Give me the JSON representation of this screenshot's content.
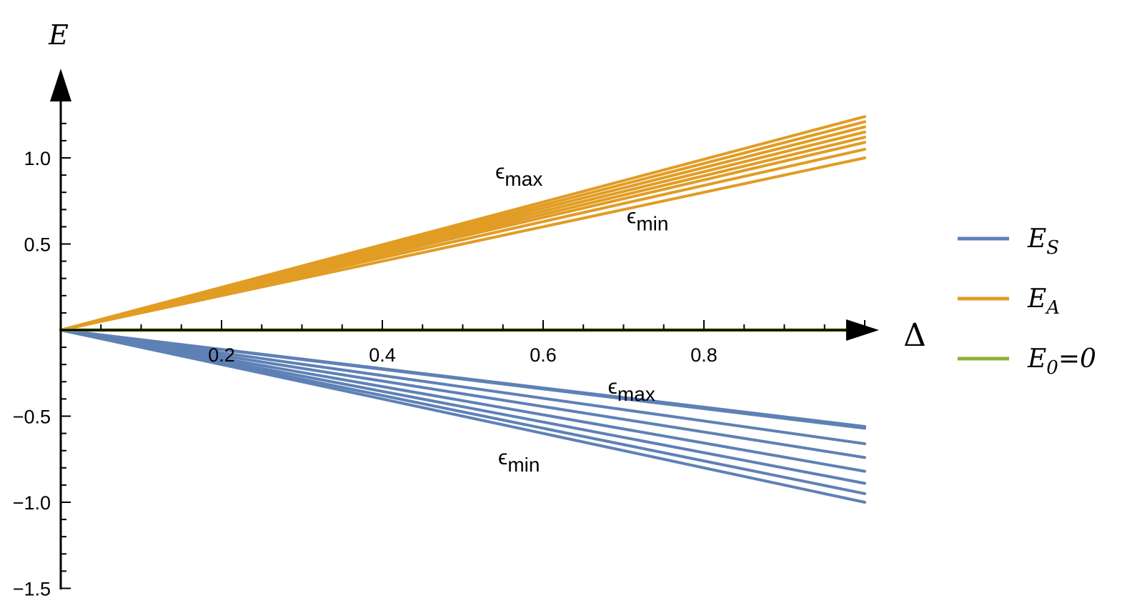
{
  "chart_data": {
    "type": "line",
    "xlabel": "Δ",
    "ylabel": "E",
    "xlim": [
      0,
      1.0
    ],
    "ylim": [
      -1.5,
      1.3
    ],
    "x_ticks": [
      "0.2",
      "0.4",
      "0.6",
      "0.8"
    ],
    "x_tick_values": [
      0.2,
      0.4,
      0.6,
      0.8
    ],
    "y_ticks": [
      "1.0",
      "0.5",
      "−0.5",
      "−1.0",
      "−1.5"
    ],
    "y_tick_values": [
      1.0,
      0.5,
      -0.5,
      -1.0,
      -1.5
    ],
    "series": [
      {
        "name": "E_S",
        "label_main": "E",
        "label_sub": "S",
        "color": "#5e81b5",
        "x": [
          0,
          1.0
        ],
        "end_values": [
          -0.56,
          -0.57,
          -0.66,
          -0.74,
          -0.82,
          -0.89,
          -0.95,
          -1.0
        ]
      },
      {
        "name": "E_A",
        "label_main": "E",
        "label_sub": "A",
        "color": "#e19c24",
        "x": [
          0,
          1.0
        ],
        "end_values": [
          1.24,
          1.21,
          1.18,
          1.15,
          1.12,
          1.09,
          1.05,
          1.0
        ]
      },
      {
        "name": "E_0=0",
        "label_main": "E",
        "label_sub": "0",
        "label_tail": "=0",
        "color": "#8fb032",
        "x": [
          0,
          1.0
        ],
        "end_values": [
          0
        ]
      }
    ],
    "annotations": [
      {
        "main": "ϵ",
        "sub": "max",
        "x": 0.57,
        "y": 0.88
      },
      {
        "main": "ϵ",
        "sub": "min",
        "x": 0.73,
        "y": 0.62
      },
      {
        "main": "ϵ",
        "sub": "max",
        "x": 0.71,
        "y": -0.37
      },
      {
        "main": "ϵ",
        "sub": "min",
        "x": 0.57,
        "y": -0.78
      }
    ],
    "legend_position": "right",
    "grid": false
  }
}
